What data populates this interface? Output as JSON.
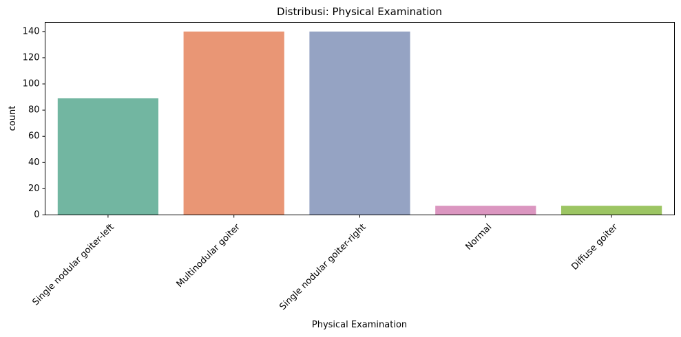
{
  "chart_data": {
    "type": "bar",
    "title": "Distribusi: Physical Examination",
    "xlabel": "Physical Examination",
    "ylabel": "count",
    "categories": [
      "Single nodular goiter-left",
      "Multinodular goiter",
      "Single nodular goiter-right",
      "Normal",
      "Diffuse goiter"
    ],
    "values": [
      89,
      140,
      140,
      7,
      7
    ],
    "colors": [
      "#72b6a1",
      "#e99675",
      "#95a3c3",
      "#db96c0",
      "#9cc563"
    ],
    "ylim": [
      0,
      147
    ],
    "yticks": [
      0,
      20,
      40,
      60,
      80,
      100,
      120,
      140
    ],
    "grid": false,
    "legend": "none"
  }
}
